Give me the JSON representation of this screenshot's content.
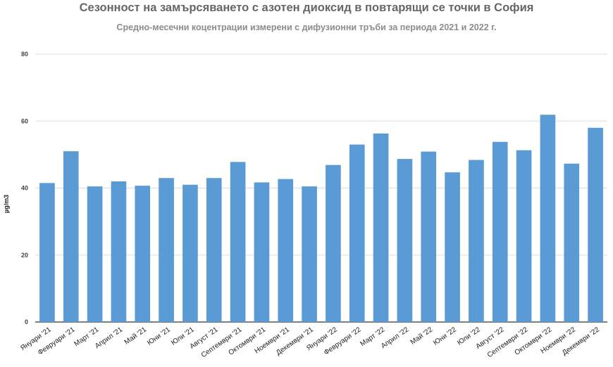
{
  "chart_data": {
    "type": "bar",
    "title": "Сезонност на замърсяването с азотен диоксид в повтарящи се точки в София",
    "subtitle": "Средно-месечни коцентрации измерени с дифузионни тръби за периода 2021 и 2022 г.",
    "xlabel": "",
    "ylabel": "µg/m3",
    "ylim": [
      0,
      80
    ],
    "yticks": [
      0,
      20,
      40,
      60,
      80
    ],
    "grid": true,
    "bar_color": "#5b9bd5",
    "categories": [
      "Януари '21",
      "Февруари '21",
      "Март '21",
      "Април '21",
      "Май '21",
      "Юни '21",
      "Юли '21",
      "Август '21",
      "Септември '21",
      "Октомври '21",
      "Ноември '21",
      "Декември '21",
      "Януари '22",
      "Февруари '22",
      "Март '22",
      "Април '22",
      "Май '22",
      "Юни '22",
      "Юли '22",
      "Август '22",
      "Септември '22",
      "Октомври '22",
      "Ноември '22",
      "Декември '22"
    ],
    "values": [
      41.5,
      51,
      40.5,
      42,
      40.7,
      43,
      41,
      43,
      47.8,
      41.7,
      42.7,
      40.5,
      46.9,
      53,
      56.3,
      48.7,
      50.9,
      44.7,
      48.4,
      53.8,
      51.3,
      61.9,
      47.3,
      58
    ]
  }
}
